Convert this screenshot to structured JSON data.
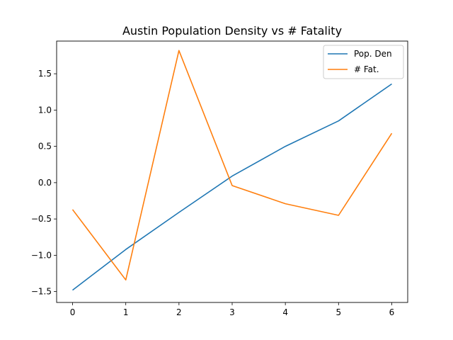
{
  "chart_data": {
    "type": "line",
    "title": "Austin Population Density vs # Fatality",
    "xlabel": "",
    "ylabel": "",
    "x": [
      0,
      1,
      2,
      3,
      4,
      5,
      6
    ],
    "xlim": [
      -0.3,
      6.3
    ],
    "ylim": [
      -1.65,
      1.95
    ],
    "x_ticks": [
      0,
      1,
      2,
      3,
      4,
      5,
      6
    ],
    "y_ticks": [
      -1.5,
      -1.0,
      -0.5,
      0.0,
      0.5,
      1.0,
      1.5
    ],
    "y_tick_labels": [
      "−1.5",
      "−1.0",
      "−0.5",
      "0.0",
      "0.5",
      "1.0",
      "1.5"
    ],
    "grid": false,
    "legend_position": "top-right",
    "series": [
      {
        "name": "Pop. Den",
        "color": "#1f77b4",
        "values": [
          -1.48,
          -0.92,
          -0.41,
          0.09,
          0.5,
          0.85,
          1.36
        ]
      },
      {
        "name": "# Fat.",
        "color": "#ff7f0e",
        "values": [
          -0.37,
          -1.34,
          1.82,
          -0.04,
          -0.29,
          -0.45,
          0.68
        ]
      }
    ]
  }
}
